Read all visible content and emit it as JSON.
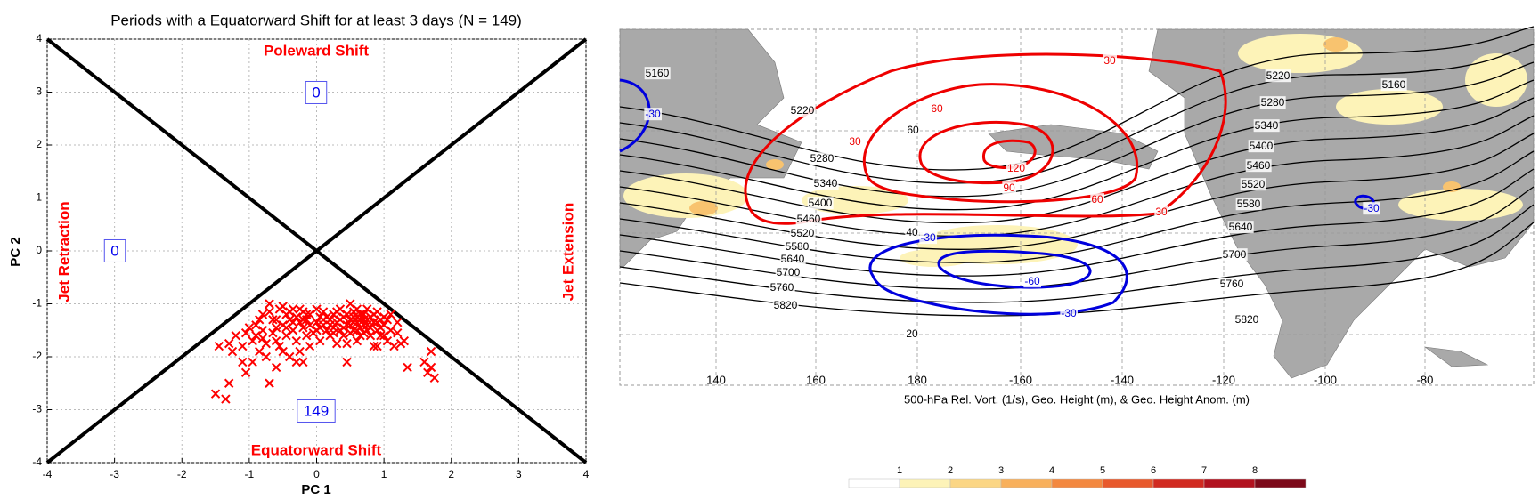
{
  "chart_data": {
    "type": "scatter",
    "title": "Periods with a Equatorward Shift for at least 3 days (N = 149)",
    "xlabel": "PC 1",
    "ylabel": "PC 2",
    "xlim": [
      -4,
      4
    ],
    "ylim": [
      -4,
      4
    ],
    "xticks": [
      -4,
      -3,
      -2,
      -1,
      0,
      1,
      2,
      3,
      4
    ],
    "yticks": [
      -4,
      -3,
      -2,
      -1,
      0,
      1,
      2,
      3,
      4
    ],
    "grid": true,
    "annotations": [
      "Poleward Shift",
      "0",
      "Jet Retraction",
      "0",
      "Jet Extension",
      "149",
      "Equatorward Shift"
    ],
    "series": [
      {
        "color": "#ff0000",
        "marker": "x",
        "x": [
          -1.5,
          -1.35,
          -1.3,
          -1.45,
          -1.3,
          -1.2,
          -1.1,
          -1.1,
          -1.05,
          -0.95,
          -0.9,
          -0.9,
          -0.85,
          -0.8,
          -0.8,
          -0.75,
          -0.7,
          -0.7,
          -0.65,
          -0.6,
          -0.6,
          -0.55,
          -0.5,
          -0.5,
          -0.45,
          -0.45,
          -0.4,
          -0.4,
          -0.35,
          -0.35,
          -0.3,
          -0.3,
          -0.25,
          -0.25,
          -0.2,
          -0.2,
          -0.15,
          -0.15,
          -0.1,
          -0.1,
          -0.05,
          0,
          0,
          0.05,
          0.05,
          0.1,
          0.1,
          0.15,
          0.2,
          0.2,
          0.25,
          0.25,
          0.3,
          0.3,
          0.35,
          0.35,
          0.4,
          0.4,
          0.45,
          0.45,
          0.5,
          0.5,
          0.55,
          0.55,
          0.6,
          0.6,
          0.65,
          0.65,
          0.7,
          0.7,
          0.75,
          0.75,
          0.8,
          0.8,
          0.85,
          0.85,
          0.9,
          0.9,
          0.95,
          1.0,
          1.0,
          1.05,
          1.1,
          1.1,
          1.15,
          1.2,
          1.2,
          1.3,
          1.35,
          1.6,
          1.65,
          1.7,
          1.75,
          1.7,
          -0.95,
          -1.0,
          -0.75,
          -0.6,
          -0.55,
          -0.5,
          -0.3,
          -0.1,
          0.15,
          0.3,
          0.5,
          0.55,
          0.6,
          0.65,
          0.7,
          0.75,
          0.85,
          0.9,
          0.95,
          1.05,
          0.55,
          0.45,
          -0.2,
          -0.7,
          -0.85,
          -1.05,
          -0.65,
          -0.35,
          0,
          0.2,
          0.4,
          0.6,
          0.8,
          1.0,
          0.7,
          0.5,
          -0.25,
          -0.45,
          0.1,
          0.35,
          0.65,
          0.9,
          -0.2,
          0.45,
          -0.8,
          -1.25,
          1.25,
          0.95,
          -0.15,
          0.25,
          0.6,
          0.75,
          -0.4,
          0.05,
          -0.6
        ],
        "y": [
          -2.7,
          -2.8,
          -2.5,
          -1.8,
          -1.75,
          -1.6,
          -1.8,
          -2.1,
          -2.3,
          -2.1,
          -1.4,
          -1.6,
          -1.9,
          -1.2,
          -1.5,
          -2.0,
          -2.5,
          -1.0,
          -1.3,
          -1.7,
          -2.2,
          -1.1,
          -1.4,
          -1.9,
          -1.2,
          -1.6,
          -1.3,
          -2.0,
          -1.1,
          -1.5,
          -1.25,
          -1.7,
          -1.35,
          -1.9,
          -1.15,
          -1.45,
          -1.3,
          -1.6,
          -1.2,
          -1.4,
          -1.55,
          -1.1,
          -1.35,
          -1.25,
          -1.7,
          -1.4,
          -1.15,
          -1.5,
          -1.3,
          -1.6,
          -1.2,
          -1.45,
          -1.35,
          -1.75,
          -1.1,
          -1.5,
          -1.25,
          -1.6,
          -1.4,
          -2.1,
          -1.0,
          -1.3,
          -1.5,
          -1.15,
          -1.35,
          -1.7,
          -1.2,
          -1.45,
          -1.3,
          -1.55,
          -1.1,
          -1.4,
          -1.25,
          -1.6,
          -1.35,
          -1.8,
          -1.15,
          -1.5,
          -1.3,
          -1.6,
          -1.4,
          -1.7,
          -1.2,
          -1.5,
          -1.8,
          -1.55,
          -1.35,
          -1.7,
          -2.2,
          -2.1,
          -2.3,
          -1.9,
          -2.4,
          -2.2,
          -1.7,
          -1.45,
          -1.75,
          -1.45,
          -1.8,
          -1.05,
          -2.1,
          -1.8,
          -1.25,
          -1.15,
          -1.55,
          -1.35,
          -1.1,
          -1.3,
          -1.4,
          -1.5,
          -1.2,
          -1.35,
          -1.6,
          -1.3,
          -1.25,
          -1.2,
          -1.3,
          -1.15,
          -1.3,
          -1.55,
          -1.55,
          -1.35,
          -1.5,
          -1.4,
          -1.45,
          -1.5,
          -1.45,
          -1.25,
          -1.2,
          -1.4,
          -1.1,
          -1.45,
          -1.3,
          -1.3,
          -1.6,
          -1.8,
          -2.1,
          -1.75,
          -1.65,
          -1.9,
          -1.75,
          -1.45,
          -1.2,
          -1.55,
          -1.25,
          -1.3,
          -1.15,
          -1.45,
          -1.3
        ]
      }
    ]
  },
  "map": {
    "xlabel": "500-hPa Rel. Vort. (1/s), Geo. Height (m), & Geo. Height Anom. (m)",
    "lon_labels": [
      "140",
      "160",
      "180",
      "-160",
      "-140",
      "-120",
      "-100",
      "-80"
    ],
    "height_labels": [
      "5160",
      "5220",
      "5280",
      "5340",
      "5400",
      "5460",
      "5520",
      "5580",
      "5640",
      "5700",
      "5760",
      "5820",
      "5220",
      "5280",
      "5340",
      "5400",
      "5460",
      "5520",
      "5580",
      "5640",
      "5700",
      "5760",
      "5820",
      "5160"
    ],
    "positive_anomaly_labels": [
      "30",
      "60",
      "30",
      "120",
      "90",
      "60",
      "30"
    ],
    "negative_anomaly_labels": [
      "-30",
      "-30",
      "-30",
      "-60",
      "-30"
    ],
    "other_labels": [
      "60",
      "40",
      "20"
    ],
    "colorbar_ticks": [
      "1",
      "2",
      "3",
      "4",
      "5",
      "6",
      "7",
      "8"
    ]
  }
}
